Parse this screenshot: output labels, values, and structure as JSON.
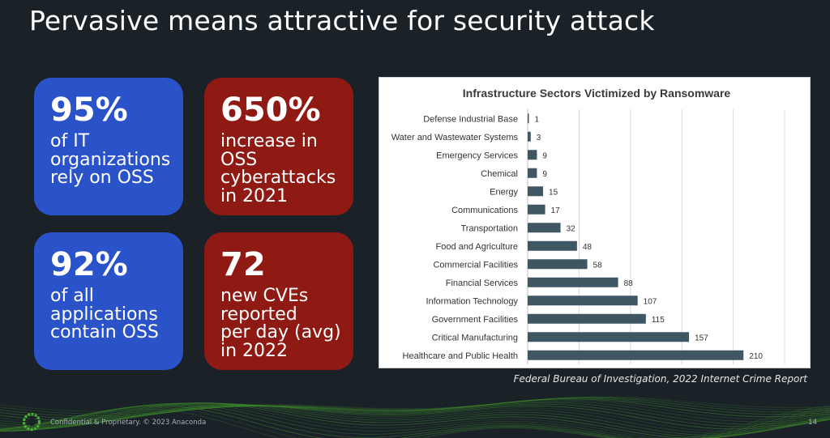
{
  "slide": {
    "title": "Pervasive means attractive for security attack",
    "source": "Federal Bureau of Investigation, 2022 Internet Crime Report",
    "footer": "Confidential & Proprietary. © 2023 Anaconda",
    "page_number": "14"
  },
  "cards": [
    {
      "big": "95%",
      "desc": "of IT\norganizations\nrely on OSS"
    },
    {
      "big": "650%",
      "desc": "increase in\nOSS\ncyberattacks\nin 2021"
    },
    {
      "big": "92%",
      "desc": "of all\napplications\ncontain OSS"
    },
    {
      "big": "72",
      "desc": "new CVEs\nreported\nper day (avg)\nin 2022"
    }
  ],
  "colors": {
    "background": "#1a2228",
    "blue_card": "#2b53c9",
    "red_card": "#8f1a14",
    "bar": "#3f5663",
    "wave": "#3f8f2a"
  },
  "icons": {
    "logo": "anaconda-ring-icon"
  },
  "chart_data": {
    "type": "bar",
    "orientation": "horizontal",
    "title": "Infrastructure Sectors Victimized by Ransomware",
    "categories": [
      "Defense Industrial Base",
      "Water and Wastewater Systems",
      "Emergency Services",
      "Chemical",
      "Energy",
      "Communications",
      "Transportation",
      "Food and Agriculture",
      "Commercial Facilities",
      "Financial Services",
      "Information Technology",
      "Government Facilities",
      "Critical Manufacturing",
      "Healthcare and Public Health"
    ],
    "values": [
      1,
      3,
      9,
      9,
      15,
      17,
      32,
      48,
      58,
      88,
      107,
      115,
      157,
      210
    ],
    "xlim": [
      0,
      250
    ],
    "grid": true,
    "data_labels": true,
    "xlabel": "",
    "ylabel": ""
  }
}
